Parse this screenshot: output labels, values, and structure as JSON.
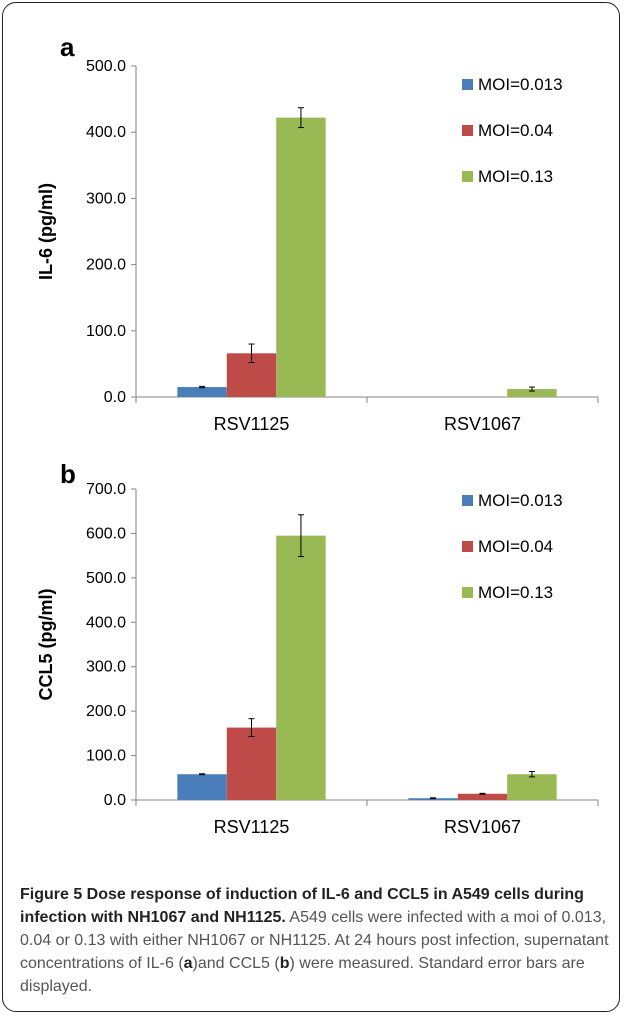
{
  "panels": [
    {
      "letter": "a",
      "ylabel": "IL-6 (pg/ml)",
      "tick_labels": [
        "0.0",
        "100.0",
        "200.0",
        "300.0",
        "400.0",
        "500.0"
      ]
    },
    {
      "letter": "b",
      "ylabel": "CCL5 (pg/ml)",
      "tick_labels": [
        "0.0",
        "100.0",
        "200.0",
        "300.0",
        "400.0",
        "500.0",
        "600.0",
        "700.0"
      ]
    }
  ],
  "chart_data": [
    {
      "type": "bar",
      "title": "",
      "xlabel": "",
      "ylabel": "IL-6 (pg/ml)",
      "ylim": [
        0,
        500
      ],
      "grid": false,
      "legend_position": "right",
      "categories": [
        "RSV1125",
        "RSV1067"
      ],
      "series": [
        {
          "name": "MOI=0.013",
          "values": [
            15,
            0
          ],
          "errors": [
            1,
            0
          ],
          "color": "#4a7ebb"
        },
        {
          "name": "MOI=0.04",
          "values": [
            66,
            0
          ],
          "errors": [
            14,
            0
          ],
          "color": "#be4b48"
        },
        {
          "name": "MOI=0.13",
          "values": [
            422,
            12
          ],
          "errors": [
            15,
            3
          ],
          "color": "#98b954"
        }
      ]
    },
    {
      "type": "bar",
      "title": "",
      "xlabel": "",
      "ylabel": "CCL5 (pg/ml)",
      "ylim": [
        0,
        700
      ],
      "grid": false,
      "legend_position": "right",
      "categories": [
        "RSV1125",
        "RSV1067"
      ],
      "series": [
        {
          "name": "MOI=0.013",
          "values": [
            58,
            4
          ],
          "errors": [
            1,
            1
          ],
          "color": "#4a7ebb"
        },
        {
          "name": "MOI=0.04",
          "values": [
            163,
            14
          ],
          "errors": [
            20,
            1
          ],
          "color": "#be4b48"
        },
        {
          "name": "MOI=0.13",
          "values": [
            595,
            58
          ],
          "errors": [
            47,
            6
          ],
          "color": "#98b954"
        }
      ]
    }
  ],
  "caption": {
    "title": "Figure 5 Dose response of induction of IL-6 and CCL5 in A549 cells during infection with NH1067 and NH1125.",
    "body_1": " A549 cells were infected with a moi of 0.013, 0.04 or 0.13 with either NH1067 or NH1125. At 24 hours post infection, supernatant concentrations of IL-6 (",
    "ref_a": "a",
    "body_2": ")and CCL5 (",
    "ref_b": "b",
    "body_3": ") were measured. Standard error bars are displayed."
  }
}
